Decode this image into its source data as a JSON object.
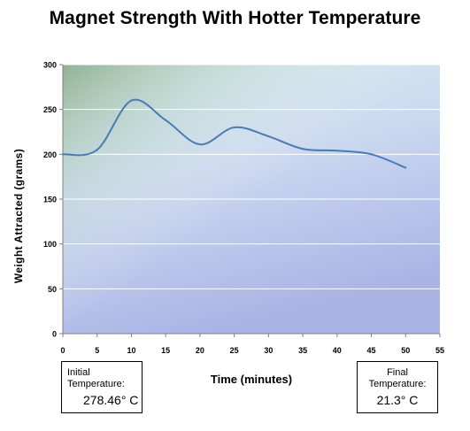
{
  "chart_data": {
    "type": "line",
    "title": "Magnet Strength With Hotter Temperature",
    "xlabel": "Time (minutes)",
    "ylabel": "Weight Attracted (grams)",
    "xlim": [
      0,
      55
    ],
    "ylim": [
      0,
      300
    ],
    "x_ticks": [
      0,
      5,
      10,
      15,
      20,
      25,
      30,
      35,
      40,
      45,
      50,
      55
    ],
    "y_ticks": [
      0,
      50,
      100,
      150,
      200,
      250,
      300
    ],
    "grid": true,
    "legend": "none",
    "series": [
      {
        "x": [
          0,
          5,
          10,
          15,
          20,
          25,
          30,
          35,
          40,
          45,
          50
        ],
        "y": [
          200,
          205,
          260,
          238,
          211,
          230,
          220,
          206,
          204,
          200,
          185
        ],
        "color": "#4a7ab8"
      }
    ],
    "annotations": {
      "initial": {
        "label_line1": "Initial",
        "label_line2": "Temperature:",
        "value": "278.46° C"
      },
      "final": {
        "label_line1": "Final",
        "label_line2": "Temperature:",
        "value": "21.3° C"
      }
    }
  }
}
